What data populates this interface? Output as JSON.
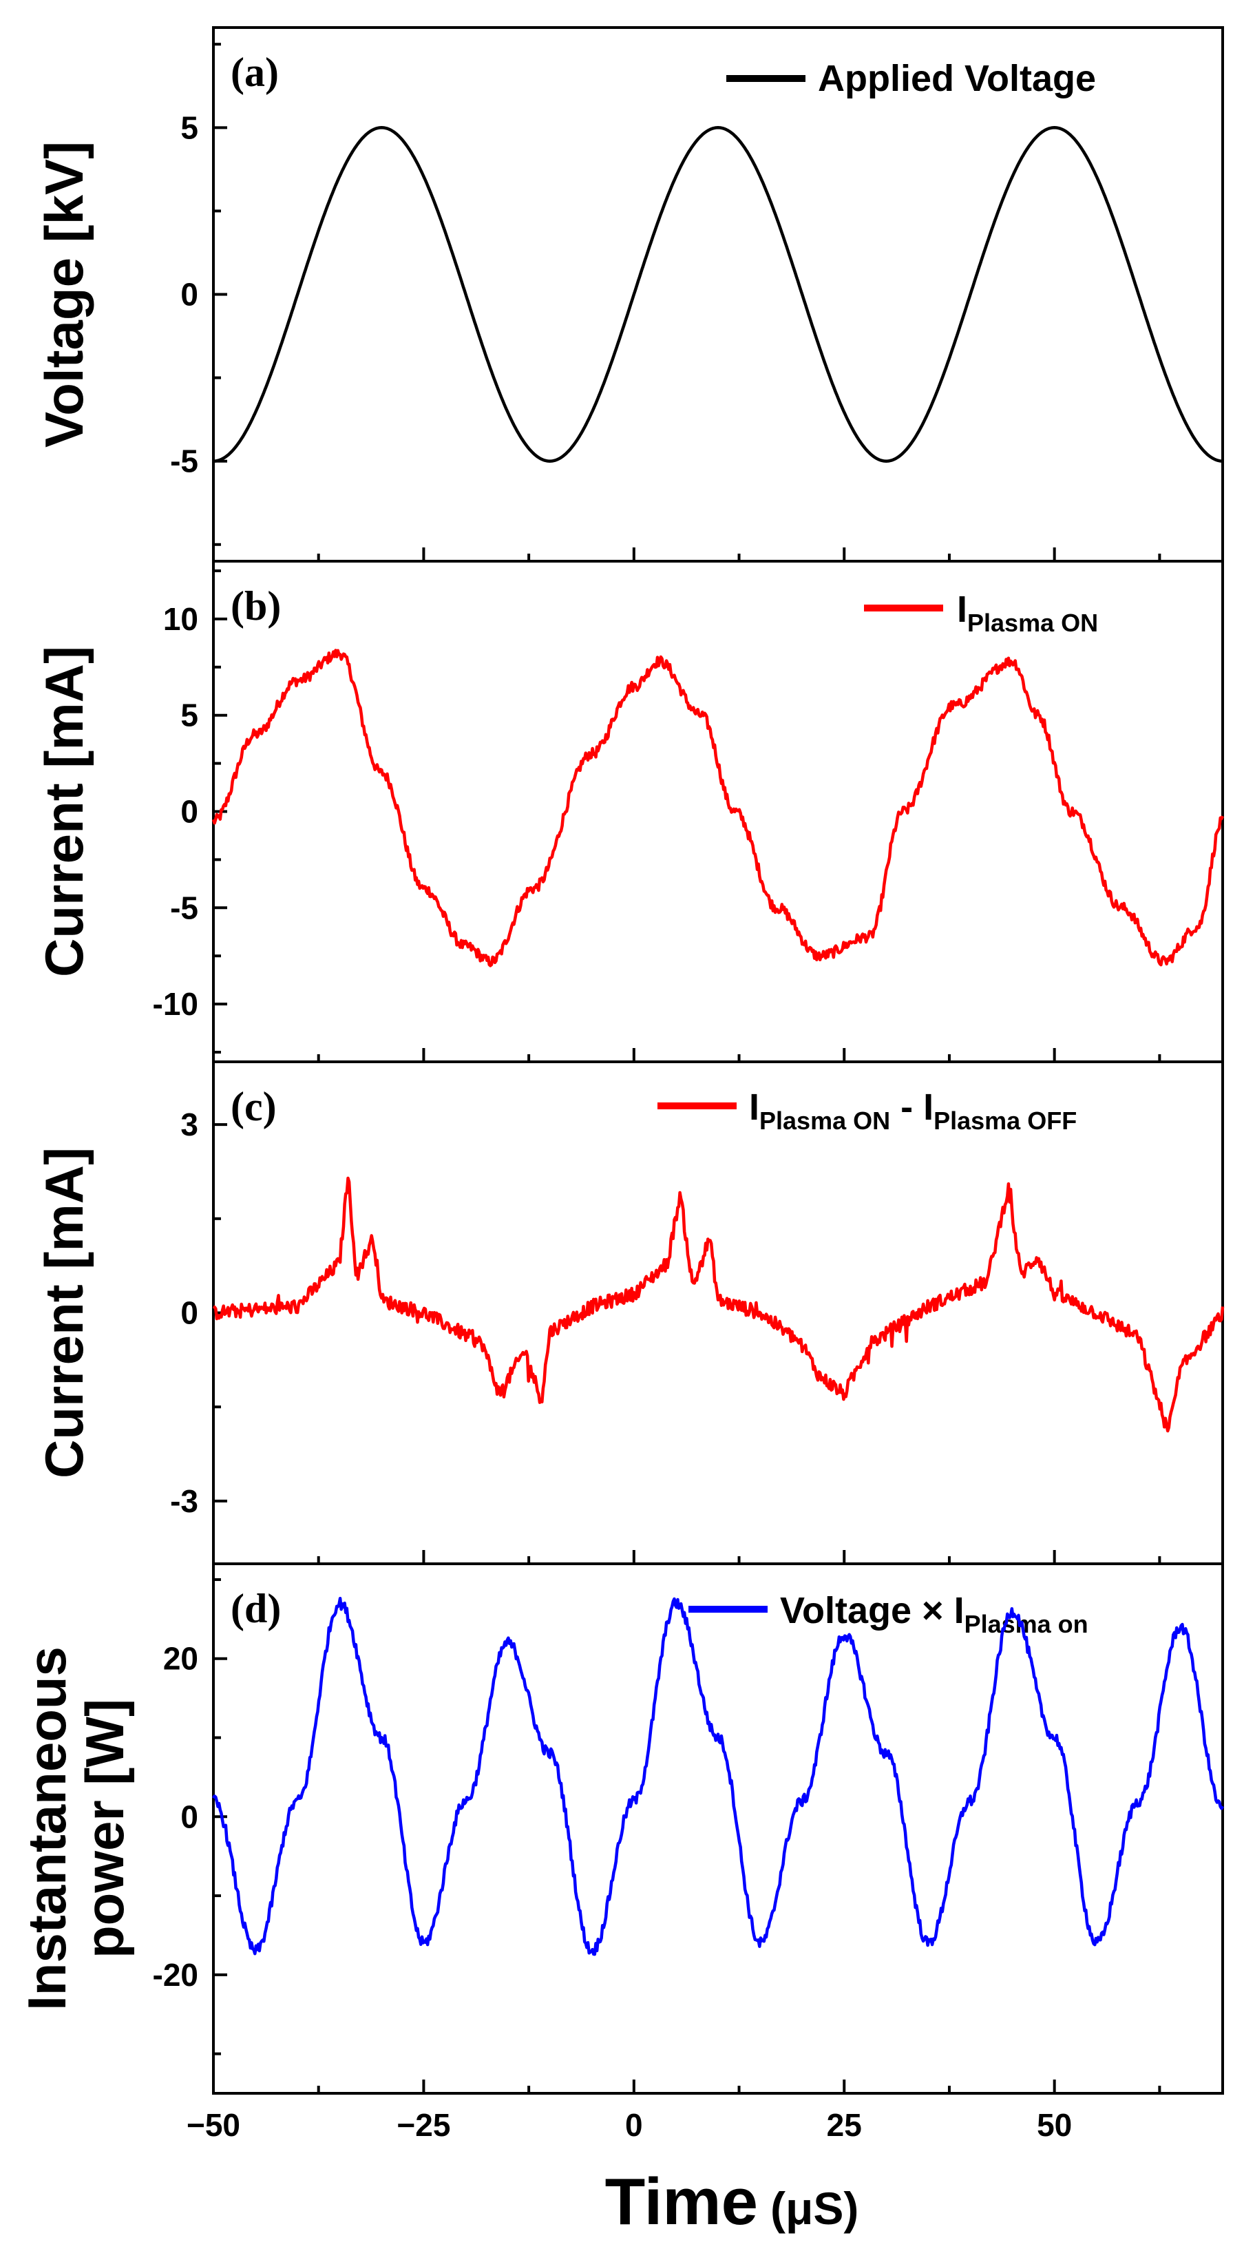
{
  "chart_data": [
    {
      "panel": "a",
      "type": "line",
      "panel_label": "(a)",
      "ylabel": "Voltage [kV]",
      "ylim": [
        -8,
        8
      ],
      "yticks": [
        -5,
        0,
        5
      ],
      "xlim": [
        -50,
        70
      ],
      "legend": {
        "text": "Applied Voltage",
        "sub": "",
        "position": "top-right"
      },
      "series": [
        {
          "name": "Applied Voltage",
          "color": "#000000",
          "model": "sine",
          "amplitude": 5,
          "period_us": 40,
          "peak_at_us": -30,
          "noise": 0,
          "values_sampled": [
            [
              -50,
              -5
            ],
            [
              -40,
              0
            ],
            [
              -30,
              5
            ],
            [
              -20,
              0
            ],
            [
              -10,
              -5
            ],
            [
              0,
              0
            ],
            [
              10,
              5
            ],
            [
              20,
              0
            ],
            [
              30,
              -5
            ],
            [
              40,
              0
            ],
            [
              50,
              5
            ],
            [
              60,
              0
            ],
            [
              70,
              -5
            ]
          ]
        }
      ]
    },
    {
      "panel": "b",
      "type": "line",
      "panel_label": "(b)",
      "ylabel": "Current [mA]",
      "ylim": [
        -13,
        13
      ],
      "yticks": [
        -10,
        -5,
        0,
        5,
        10
      ],
      "xlim": [
        -50,
        70
      ],
      "legend": {
        "text": "I",
        "sub": "Plasma ON",
        "position": "top-right"
      },
      "series": [
        {
          "name": "I Plasma ON",
          "color": "#ff0000",
          "model": "rounded_wave",
          "values_sampled": [
            [
              -50,
              -0.5
            ],
            [
              -45,
              4
            ],
            [
              -40,
              6.8
            ],
            [
              -35,
              8.2
            ],
            [
              -30,
              2
            ],
            [
              -25,
              -4
            ],
            [
              -20,
              -7
            ],
            [
              -17,
              -7.8
            ],
            [
              -12,
              -4
            ],
            [
              -5,
              3
            ],
            [
              0,
              6.5
            ],
            [
              3,
              7.8
            ],
            [
              8,
              5
            ],
            [
              12,
              0
            ],
            [
              17,
              -5
            ],
            [
              22,
              -7.5
            ],
            [
              28,
              -6.5
            ],
            [
              32,
              0
            ],
            [
              38,
              5.5
            ],
            [
              45,
              7.8
            ],
            [
              48,
              5
            ],
            [
              52,
              0
            ],
            [
              58,
              -5
            ],
            [
              63,
              -7.8
            ],
            [
              67,
              -6
            ],
            [
              70,
              -0.5
            ]
          ]
        }
      ]
    },
    {
      "panel": "c",
      "type": "line",
      "panel_label": "(c)",
      "ylabel": "Current [mA]",
      "ylim": [
        -4,
        4
      ],
      "yticks": [
        -3,
        0,
        3
      ],
      "xlim": [
        -50,
        70
      ],
      "legend": {
        "text": "I",
        "sub": "Plasma ON",
        "text2": " - I",
        "sub2": "Plasma OFF",
        "position": "top-right"
      },
      "series": [
        {
          "name": "I Plasma ON - I Plasma OFF",
          "color": "#ff0000",
          "model": "spiky",
          "values_sampled": [
            [
              -50,
              0
            ],
            [
              -40,
              0.1
            ],
            [
              -35,
              0.8
            ],
            [
              -34,
              2.2
            ],
            [
              -33,
              0.6
            ],
            [
              -31,
              1.2
            ],
            [
              -30,
              0.2
            ],
            [
              -25,
              0
            ],
            [
              -18,
              -0.5
            ],
            [
              -16,
              -1.3
            ],
            [
              -13,
              -0.6
            ],
            [
              -11,
              -1.4
            ],
            [
              -10,
              -0.3
            ],
            [
              -5,
              0.1
            ],
            [
              0,
              0.3
            ],
            [
              4,
              0.8
            ],
            [
              5.5,
              1.9
            ],
            [
              7,
              0.4
            ],
            [
              9,
              1.2
            ],
            [
              10,
              0.2
            ],
            [
              15,
              0
            ],
            [
              20,
              -0.5
            ],
            [
              22,
              -1
            ],
            [
              25,
              -1.3
            ],
            [
              28,
              -0.5
            ],
            [
              35,
              0.1
            ],
            [
              42,
              0.5
            ],
            [
              44.5,
              2
            ],
            [
              46,
              0.6
            ],
            [
              48,
              0.9
            ],
            [
              50,
              0.3
            ],
            [
              55,
              0
            ],
            [
              60,
              -0.4
            ],
            [
              63.5,
              -1.9
            ],
            [
              65,
              -0.9
            ],
            [
              70,
              0
            ]
          ]
        }
      ]
    },
    {
      "panel": "d",
      "type": "line",
      "panel_label": "(d)",
      "ylabel": "Instantaneous\npower [W]",
      "ylim": [
        -35,
        32
      ],
      "yticks": [
        -20,
        0,
        20
      ],
      "xlim": [
        -50,
        70
      ],
      "xticks": [
        -50,
        -25,
        0,
        25,
        50
      ],
      "xtick_labels": [
        "−50",
        "−25",
        "0",
        "25",
        "50"
      ],
      "xlabel": "Time",
      "xlabel_unit": "(μS)",
      "legend": {
        "text": "Voltage × I",
        "sub": "Plasma on",
        "position": "top-right"
      },
      "series": [
        {
          "name": "Voltage × I Plasma on",
          "color": "#0000ff",
          "model": "product",
          "values_sampled": [
            [
              -50,
              2
            ],
            [
              -45,
              -17
            ],
            [
              -40,
              2
            ],
            [
              -35,
              27
            ],
            [
              -30,
              10
            ],
            [
              -25,
              -16
            ],
            [
              -20,
              2
            ],
            [
              -15,
              22
            ],
            [
              -10,
              8
            ],
            [
              -5,
              -17
            ],
            [
              0,
              2
            ],
            [
              5,
              27
            ],
            [
              10,
              10
            ],
            [
              15,
              -16
            ],
            [
              20,
              2
            ],
            [
              25,
              23
            ],
            [
              30,
              8
            ],
            [
              35,
              -16
            ],
            [
              40,
              2
            ],
            [
              45,
              26
            ],
            [
              50,
              10
            ],
            [
              55,
              -16
            ],
            [
              60,
              2
            ],
            [
              65,
              24
            ],
            [
              70,
              1
            ]
          ]
        }
      ]
    }
  ]
}
